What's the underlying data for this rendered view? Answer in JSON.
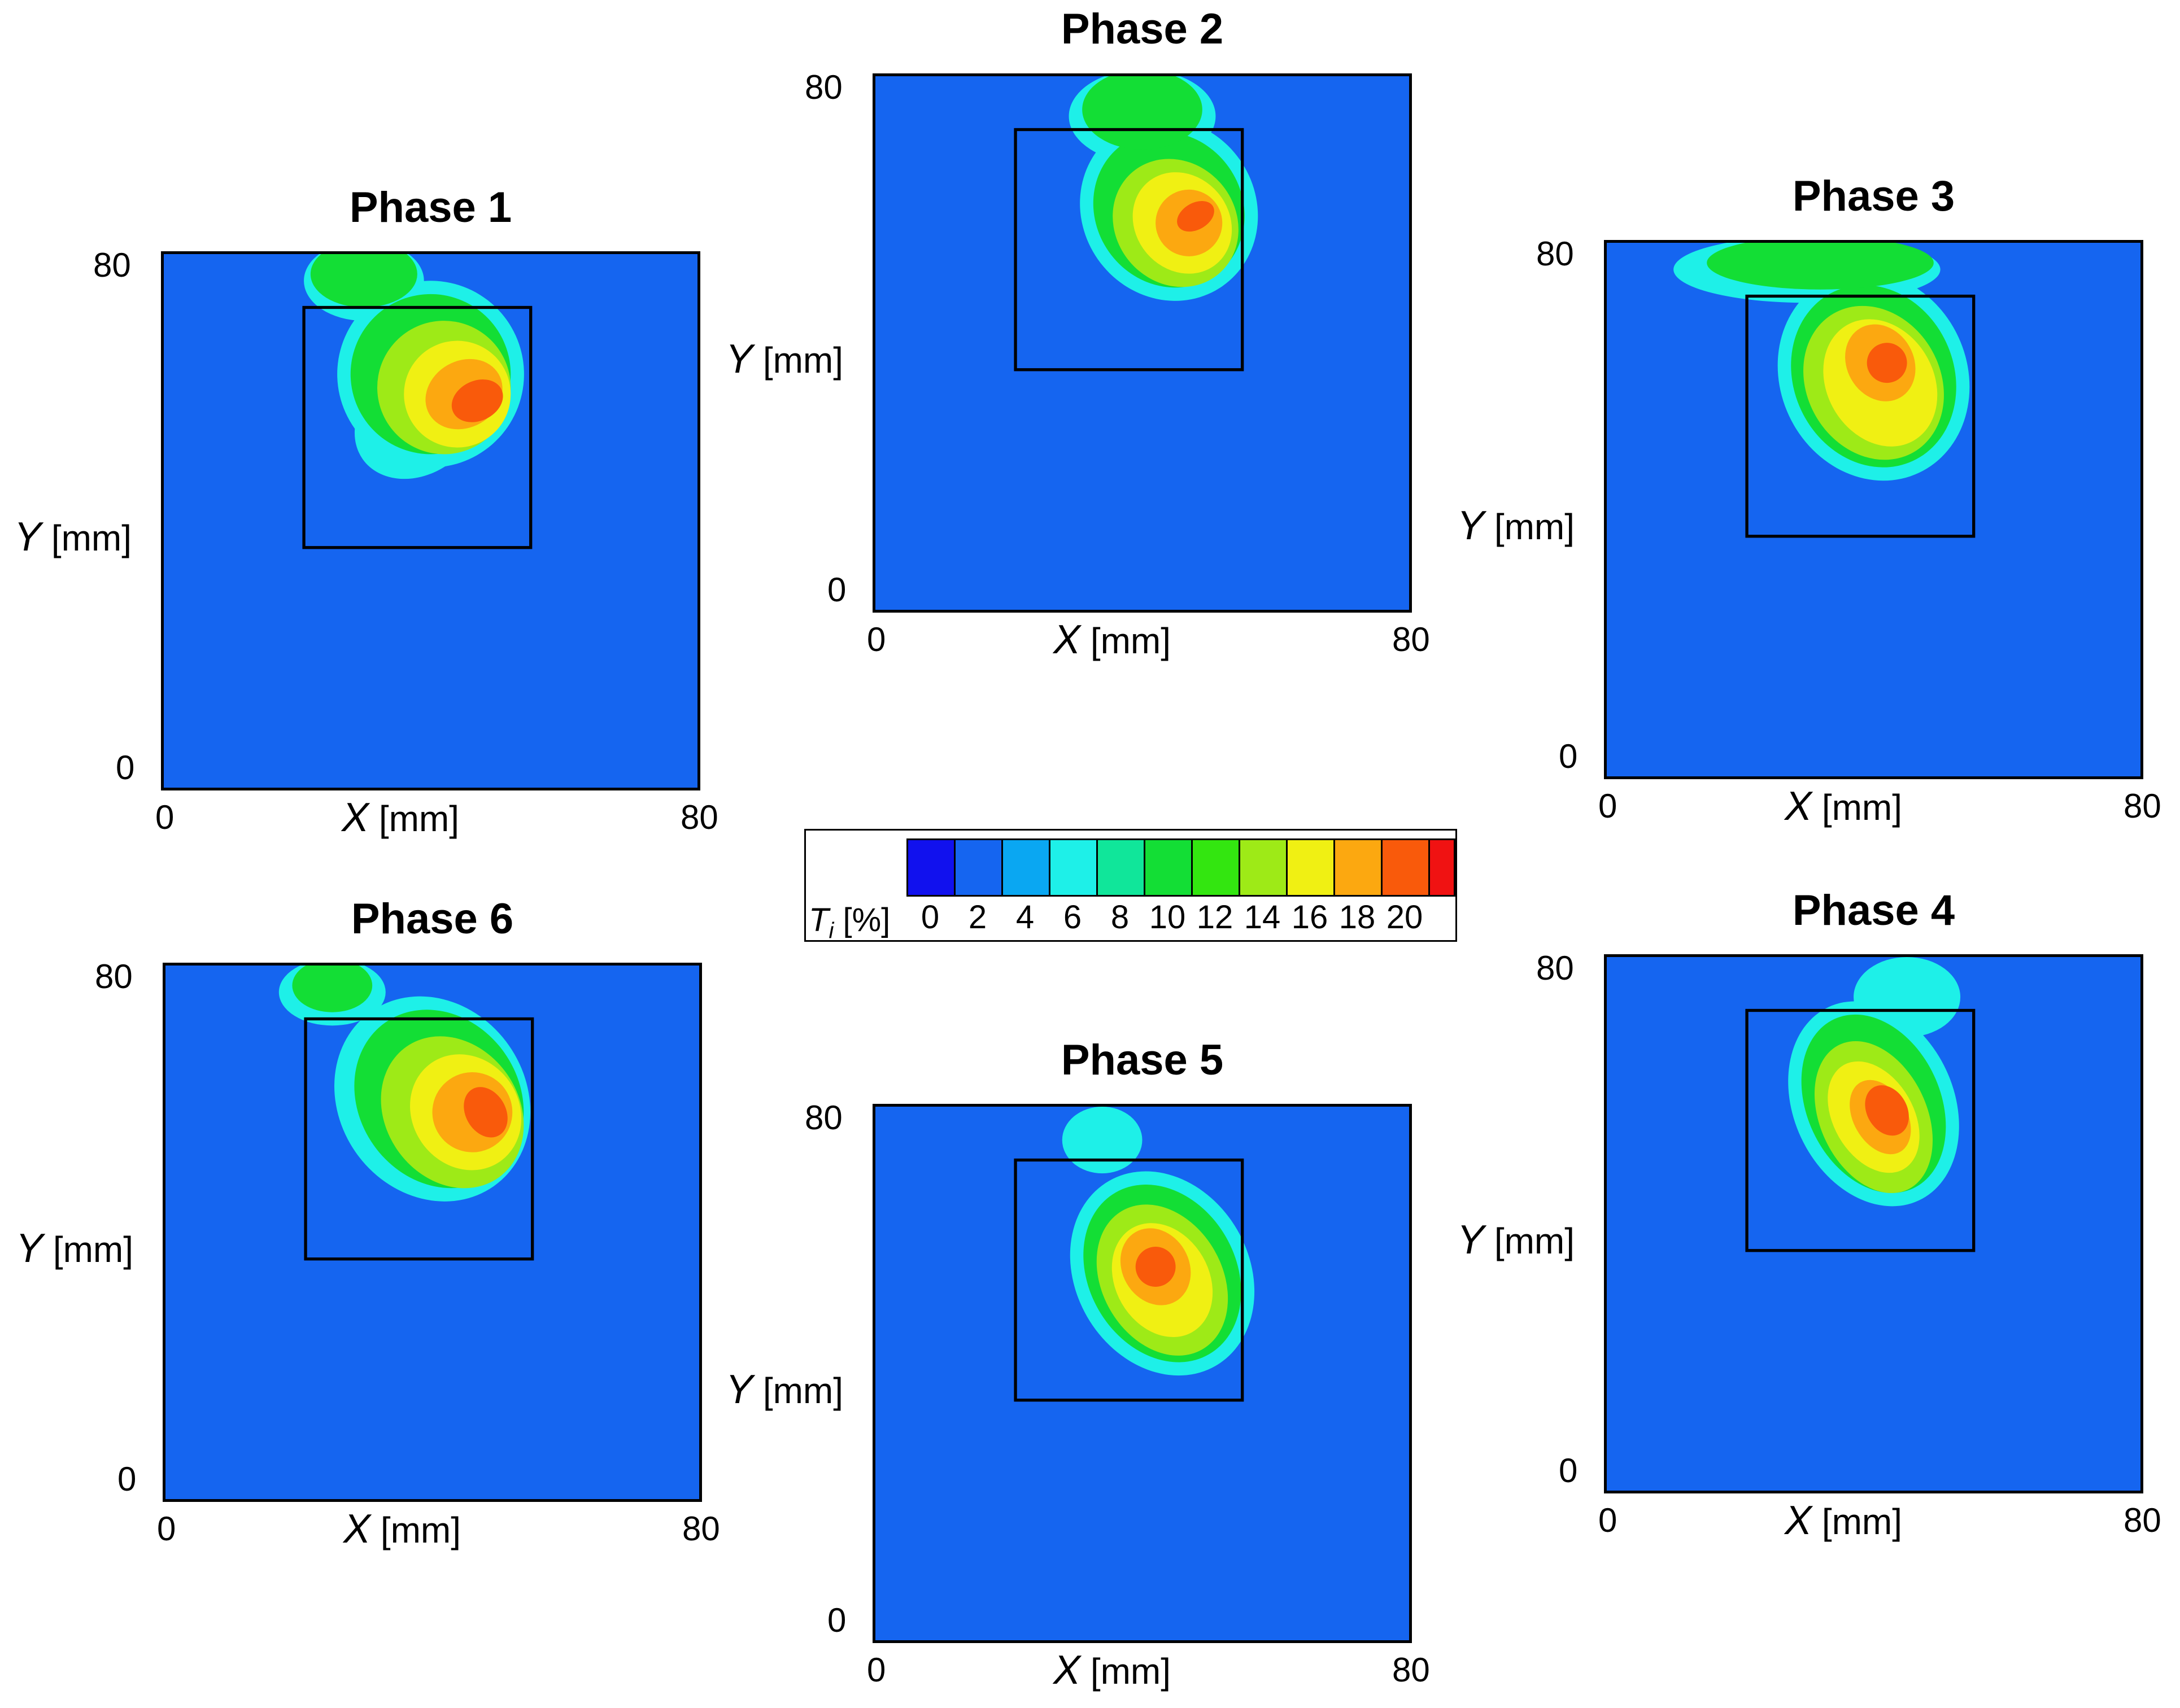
{
  "chart_data": {
    "type": "heatmap",
    "colorbar": {
      "label_symbol": "T",
      "label_subscript": "i",
      "label_unit": "[%]",
      "ticks": [
        "0",
        "2",
        "4",
        "6",
        "8",
        "10",
        "12",
        "14",
        "16",
        "18",
        "20"
      ],
      "range": [
        0,
        22
      ],
      "colors": [
        "#1111ee",
        "#1565f0",
        "#0aa7f2",
        "#1ef0e8",
        "#10e69a",
        "#13de35",
        "#33e610",
        "#9eea17",
        "#f0f013",
        "#fca810",
        "#f95a0b",
        "#f01212"
      ]
    },
    "panels": [
      {
        "id": "phase-1",
        "title": "Phase 1",
        "xlabel": "X",
        "ylabel": "Y",
        "unit": "[mm]",
        "xlim": [
          0,
          80
        ],
        "ylim": [
          0,
          80
        ],
        "xticks": [
          "0",
          "80"
        ],
        "yticks": [
          "0",
          "80"
        ],
        "box_x": [
          21,
          55
        ],
        "box_y": [
          36,
          72
        ],
        "plume_center": [
          48,
          60
        ],
        "plume_peak": 19
      },
      {
        "id": "phase-2",
        "title": "Phase 2",
        "xlabel": "X",
        "ylabel": "Y",
        "unit": "[mm]",
        "xlim": [
          0,
          80
        ],
        "ylim": [
          0,
          80
        ],
        "xticks": [
          "0",
          "80"
        ],
        "yticks": [
          "0",
          "80"
        ],
        "box_x": [
          21,
          55
        ],
        "box_y": [
          36,
          72
        ],
        "plume_center": [
          46,
          60
        ],
        "plume_peak": 19
      },
      {
        "id": "phase-3",
        "title": "Phase 3",
        "xlabel": "X",
        "ylabel": "Y",
        "unit": "[mm]",
        "xlim": [
          0,
          80
        ],
        "ylim": [
          0,
          80
        ],
        "xticks": [
          "0",
          "80"
        ],
        "yticks": [
          "0",
          "80"
        ],
        "box_x": [
          21,
          55
        ],
        "box_y": [
          36,
          72
        ],
        "plume_center": [
          43,
          58
        ],
        "plume_peak": 18
      },
      {
        "id": "phase-4",
        "title": "Phase 4",
        "xlabel": "X",
        "ylabel": "Y",
        "unit": "[mm]",
        "xlim": [
          0,
          80
        ],
        "ylim": [
          0,
          80
        ],
        "xticks": [
          "0",
          "80"
        ],
        "yticks": [
          "0",
          "80"
        ],
        "box_x": [
          21,
          55
        ],
        "box_y": [
          36,
          72
        ],
        "plume_center": [
          45,
          59
        ],
        "plume_peak": 18
      },
      {
        "id": "phase-5",
        "title": "Phase 5",
        "xlabel": "X",
        "ylabel": "Y",
        "unit": "[mm]",
        "xlim": [
          0,
          80
        ],
        "ylim": [
          0,
          80
        ],
        "xticks": [
          "0",
          "80"
        ],
        "yticks": [
          "0",
          "80"
        ],
        "box_x": [
          21,
          55
        ],
        "box_y": [
          36,
          72
        ],
        "plume_center": [
          44,
          56
        ],
        "plume_peak": 17
      },
      {
        "id": "phase-6",
        "title": "Phase 6",
        "xlabel": "X",
        "ylabel": "Y",
        "unit": "[mm]",
        "xlim": [
          0,
          80
        ],
        "ylim": [
          0,
          80
        ],
        "xticks": [
          "0",
          "80"
        ],
        "yticks": [
          "0",
          "80"
        ],
        "box_x": [
          21,
          55
        ],
        "box_y": [
          36,
          72
        ],
        "plume_center": [
          47,
          58
        ],
        "plume_peak": 20
      }
    ]
  }
}
